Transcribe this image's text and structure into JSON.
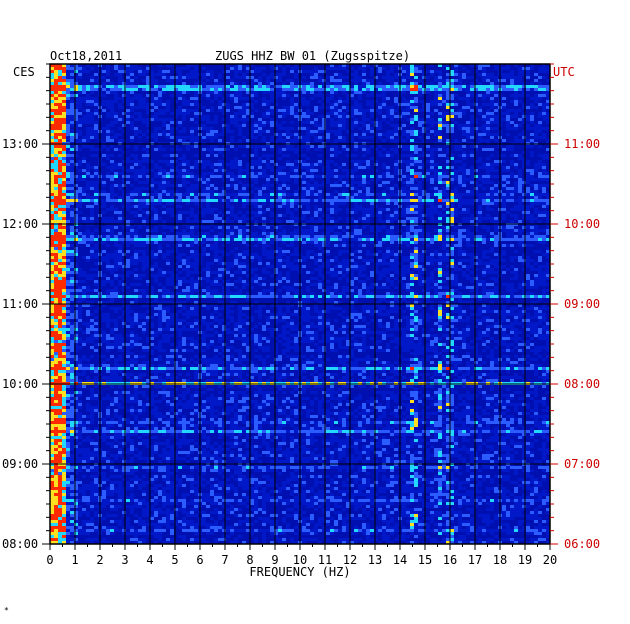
{
  "chart_data": {
    "type": "heatmap",
    "title": "ZUGS HHZ BW 01 (Zugsspitze)",
    "date": "Oct18,2011",
    "xlabel": "FREQUENCY (HZ)",
    "xlim": [
      0,
      20
    ],
    "x_ticks": [
      "0",
      "1",
      "2",
      "3",
      "4",
      "5",
      "6",
      "7",
      "8",
      "9",
      "10",
      "11",
      "12",
      "13",
      "14",
      "15",
      "16",
      "17",
      "18",
      "19",
      "20"
    ],
    "left_axis": {
      "label": "CES",
      "ticks": [
        "08:00",
        "09:00",
        "10:00",
        "11:00",
        "12:00",
        "13:00"
      ]
    },
    "right_axis": {
      "label": "UTC",
      "ticks": [
        "06:00",
        "07:00",
        "08:00",
        "09:00",
        "10:00",
        "11:00"
      ],
      "color": "#cc0000"
    },
    "time_range_hours": [
      8.0,
      14.0
    ],
    "colors": {
      "background": "#0018c8",
      "grid": "#000000",
      "low": "#0010b0",
      "mid": "#2a5cff",
      "high1": "#22d8ff",
      "high2": "#ffe020",
      "peak": "#ff2a00"
    },
    "hot_bands": [
      0.3,
      14.6,
      15.6,
      16.0
    ],
    "strong_rows_hours": [
      9.4,
      10.0,
      10.2,
      11.1,
      11.8,
      12.3,
      13.7
    ]
  },
  "footer_mark": "*"
}
